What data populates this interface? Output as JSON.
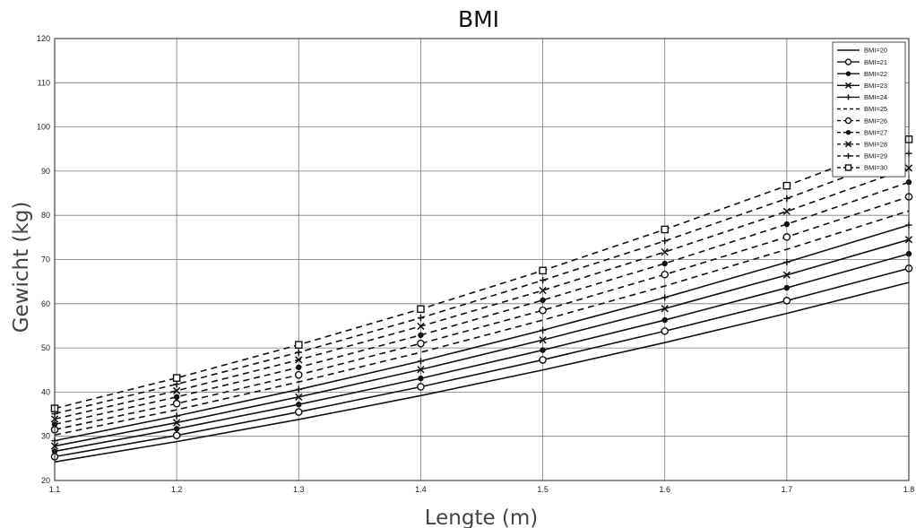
{
  "chart_data": {
    "type": "line",
    "title": "BMI",
    "xlabel": "Lengte (m)",
    "ylabel": "Gewicht (kg)",
    "xlim": [
      1.1,
      1.8
    ],
    "ylim": [
      20,
      120
    ],
    "xticks": [
      "1.1",
      "1.2",
      "1.3",
      "1.4",
      "1.5",
      "1.6",
      "1.7",
      "1.8"
    ],
    "yticks": [
      "20",
      "30",
      "40",
      "50",
      "60",
      "70",
      "80",
      "90",
      "100",
      "110",
      "120"
    ],
    "grid": true,
    "legend_position": "top-right",
    "x": [
      1.1,
      1.2,
      1.3,
      1.4,
      1.5,
      1.6,
      1.7,
      1.8
    ],
    "series": [
      {
        "name": "BMI=20",
        "line": "solid",
        "marker": "none",
        "values": [
          24.2,
          28.8,
          33.8,
          39.2,
          45.0,
          51.2,
          57.8,
          64.8
        ]
      },
      {
        "name": "BMI=21",
        "line": "solid",
        "marker": "circle",
        "values": [
          25.4,
          30.2,
          35.5,
          41.2,
          47.3,
          53.8,
          60.7,
          68.0
        ]
      },
      {
        "name": "BMI=22",
        "line": "solid",
        "marker": "dot",
        "values": [
          26.6,
          31.7,
          37.2,
          43.1,
          49.5,
          56.3,
          63.6,
          71.3
        ]
      },
      {
        "name": "BMI=23",
        "line": "solid",
        "marker": "x",
        "values": [
          27.8,
          33.1,
          38.9,
          45.1,
          51.8,
          58.9,
          66.5,
          74.5
        ]
      },
      {
        "name": "BMI=24",
        "line": "solid",
        "marker": "plus",
        "values": [
          29.0,
          34.6,
          40.6,
          47.0,
          54.0,
          61.4,
          69.4,
          77.8
        ]
      },
      {
        "name": "BMI=25",
        "line": "dashed",
        "marker": "none",
        "values": [
          30.3,
          36.0,
          42.3,
          49.0,
          56.3,
          64.0,
          72.3,
          81.0
        ]
      },
      {
        "name": "BMI=26",
        "line": "dashed",
        "marker": "circle",
        "values": [
          31.5,
          37.4,
          43.9,
          51.0,
          58.5,
          66.6,
          75.1,
          84.2
        ]
      },
      {
        "name": "BMI=27",
        "line": "dashed",
        "marker": "dot",
        "values": [
          32.7,
          38.9,
          45.6,
          52.9,
          60.8,
          69.1,
          78.0,
          87.5
        ]
      },
      {
        "name": "BMI=28",
        "line": "dashed",
        "marker": "x",
        "values": [
          33.9,
          40.3,
          47.3,
          54.9,
          63.0,
          71.7,
          80.9,
          90.7
        ]
      },
      {
        "name": "BMI=29",
        "line": "dashed",
        "marker": "plus",
        "values": [
          35.1,
          41.8,
          49.0,
          56.8,
          65.3,
          74.2,
          83.8,
          94.0
        ]
      },
      {
        "name": "BMI=30",
        "line": "dashed",
        "marker": "square",
        "values": [
          36.3,
          43.2,
          50.7,
          58.8,
          67.5,
          76.8,
          86.7,
          97.2
        ]
      }
    ]
  }
}
